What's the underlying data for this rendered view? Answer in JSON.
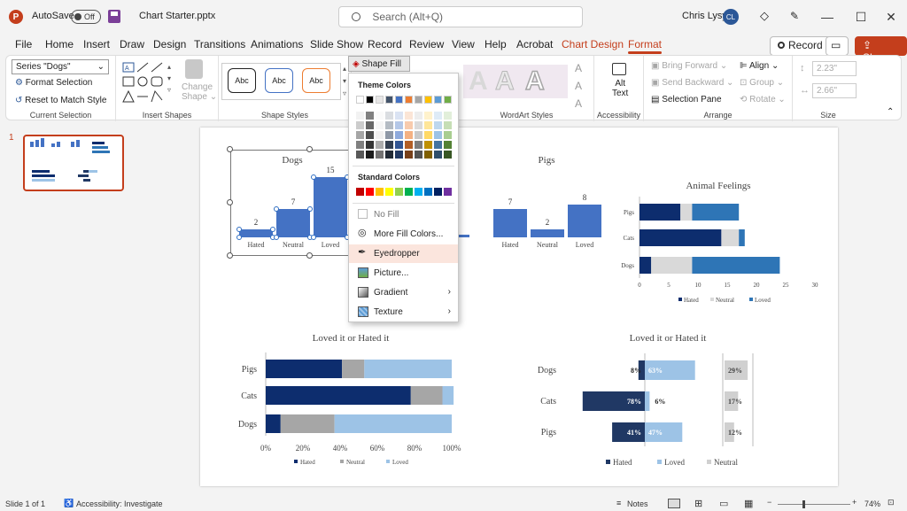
{
  "titlebar": {
    "autosave_label": "AutoSave",
    "autosave_state": "Off",
    "filename": "Chart Starter.pptx",
    "search_placeholder": "Search (Alt+Q)",
    "user_name": "Chris Lysy",
    "user_initials": "CL"
  },
  "menu": {
    "tabs": [
      "File",
      "Home",
      "Insert",
      "Draw",
      "Design",
      "Transitions",
      "Animations",
      "Slide Show",
      "Record",
      "Review",
      "View",
      "Help",
      "Acrobat",
      "Chart Design",
      "Format"
    ],
    "record_btn": "Record",
    "share_btn": "Share"
  },
  "ribbon": {
    "current_selection": {
      "series_value": "Series \"Dogs\"",
      "format_selection": "Format Selection",
      "reset_style": "Reset to Match Style",
      "label": "Current Selection"
    },
    "insert_shapes": {
      "change_shape": "Change",
      "change_shape2": "Shape",
      "label": "Insert Shapes"
    },
    "shape_styles": {
      "abc": "Abc",
      "shape_fill": "Shape Fill",
      "label": "Shape Styles"
    },
    "wordart": {
      "label": "WordArt Styles",
      "a": "A"
    },
    "accessibility": {
      "alt_text": "Alt",
      "alt_text2": "Text",
      "label": "Accessibility"
    },
    "arrange": {
      "bring_forward": "Bring Forward",
      "send_backward": "Send Backward",
      "selection_pane": "Selection Pane",
      "align": "Align",
      "group": "Group",
      "rotate": "Rotate",
      "label": "Arrange"
    },
    "size": {
      "height": "2.23\"",
      "width": "2.66\"",
      "label": "Size"
    }
  },
  "thumb": {
    "number": "1"
  },
  "dropdown": {
    "theme_colors": "Theme Colors",
    "standard_colors": "Standard Colors",
    "no_fill": "No Fill",
    "more_fill": "More Fill Colors...",
    "eyedropper": "Eyedropper",
    "picture": "Picture...",
    "gradient": "Gradient",
    "texture": "Texture",
    "theme_row": [
      "#ffffff",
      "#000000",
      "#e7e6e6",
      "#44546a",
      "#4472c4",
      "#ed7d31",
      "#a5a5a5",
      "#ffc000",
      "#5b9bd5",
      "#70ad47"
    ],
    "standard_row": [
      "#c00000",
      "#ff0000",
      "#ffc000",
      "#ffff00",
      "#92d050",
      "#00b050",
      "#00b0f0",
      "#0070c0",
      "#002060",
      "#7030a0"
    ]
  },
  "chart_data": [
    {
      "type": "bar",
      "title": "Dogs",
      "categories": [
        "Hated",
        "Neutral",
        "Loved"
      ],
      "values": [
        2,
        7,
        15
      ]
    },
    {
      "type": "bar",
      "title": "Pigs",
      "categories": [
        "Hated",
        "Neutral",
        "Loved"
      ],
      "values": [
        7,
        2,
        8
      ]
    },
    {
      "type": "bar",
      "title": "Animal Feelings",
      "orientation": "horizontal",
      "stacked": true,
      "categories": [
        "Pigs",
        "Cats",
        "Dogs"
      ],
      "series": [
        {
          "name": "Hated",
          "values": [
            7,
            14,
            2
          ]
        },
        {
          "name": "Neutral",
          "values": [
            2,
            3,
            7
          ]
        },
        {
          "name": "Loved",
          "values": [
            8,
            1,
            15
          ]
        }
      ],
      "xticks": [
        "0",
        "5",
        "10",
        "15",
        "20",
        "25",
        "30"
      ],
      "xlim": [
        0,
        30
      ],
      "legend_position": "bottom",
      "colors": [
        "#0d2d6e",
        "#d9d9d9",
        "#2e75b6"
      ]
    },
    {
      "type": "bar",
      "title": "Loved it or Hated it",
      "orientation": "horizontal",
      "stacked": true,
      "percent": true,
      "categories": [
        "Pigs",
        "Cats",
        "Dogs"
      ],
      "series": [
        {
          "name": "Hated",
          "values": [
            41,
            78,
            8
          ]
        },
        {
          "name": "Neutral",
          "values": [
            12,
            17,
            29
          ]
        },
        {
          "name": "Loved",
          "values": [
            47,
            6,
            63
          ]
        }
      ],
      "xticks": [
        "0%",
        "20%",
        "40%",
        "60%",
        "80%",
        "100%"
      ],
      "legend_position": "bottom",
      "colors": [
        "#0d2d6e",
        "#a6a6a6",
        "#9dc3e6"
      ]
    },
    {
      "type": "bar",
      "title": "Loved it or Hated it",
      "orientation": "horizontal",
      "layout": "diverging-panels",
      "categories": [
        "Dogs",
        "Cats",
        "Pigs"
      ],
      "series": [
        {
          "name": "Hated",
          "values": [
            8,
            78,
            41
          ],
          "labels": [
            "8%",
            "78%",
            "41%"
          ]
        },
        {
          "name": "Loved",
          "values": [
            63,
            6,
            47
          ],
          "labels": [
            "63%",
            "6%",
            "47%"
          ]
        },
        {
          "name": "Neutral",
          "values": [
            29,
            17,
            12
          ],
          "labels": [
            "29%",
            "17%",
            "12%"
          ]
        }
      ],
      "legend_position": "bottom",
      "colors": [
        "#203864",
        "#9dc3e6",
        "#d0d0d0"
      ]
    }
  ],
  "status": {
    "slide": "Slide 1 of 1",
    "accessibility": "Accessibility: Investigate",
    "notes": "Notes",
    "zoom": "74%"
  }
}
